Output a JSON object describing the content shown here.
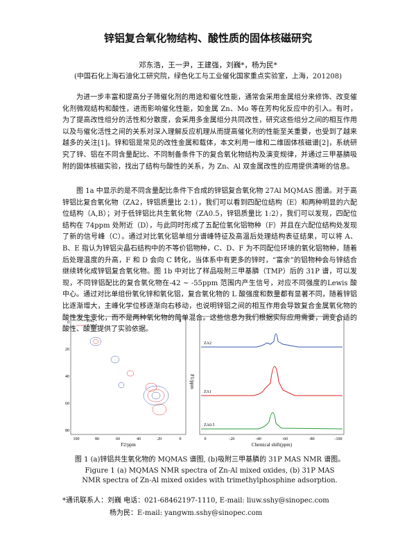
{
  "header": {
    "title": "锌铝复合氧化物结构、酸性质的固体核磁研究",
    "authors": "邓东浩，王一尹，王建强，刘巍*，杨为民*",
    "affiliation": "(中国石化上海石油化工研究院，绿色化工与工业催化国家重点实验室，上海，201208)"
  },
  "body": {
    "paragraphs": [
      "为进一步丰富和提高分子筛催化剂的用途和催化性能，通常会采用金属组分来修饰、改变催化剂微观结构和酸性，进而影响催化性能，如金属 Zn、Mo 等在芳构化反应中的引入。有时，为了提高改性组分的活性和分散度，会采用多金属组分共同改性，研究这些组分之间的相互作用以及与催化活性之间的关系对深入理解反应机理从而提高催化剂的性能至关重要，也受到了越来越多的关注[1]。锌和铝是常见的改性金属和载体，本文利用一维和二维固体核磁谱[2]，系统研究了锌、铝在不同含量配比、不同制备条件下的复合氧化物结构及演变规律，并通过三甲基膦吸附的固体核磁实验，找出了结构与酸性的关系，为 Zn、Al 双金属改性的应用提供清晰的信息。",
      "图 1a 中显示的是不同含量配比条件下合成的锌铝复合氧化物 27Al MQMAS 图谱。对于高锌铝比复合氧化物（ZA2，锌铝质量比 2:1），我们可以看到四配位结构（E）和两种明显的六配位结构（A,B）；对于低锌铝比共生氧化物（ZA0.5，锌铝质量比 1:2），我们可以发现，四配位结构在 74ppm 处附近（D），与此同时形成了五配位氧化铝物种（F）并且在六配位结构处发现了新的信号峰（C）。通过对比氧化铝单组分谱峰特征及高温后处理结构表征结果，可以将 A、B、E 指认为锌铝尖晶石结构中的不等价铝物种，C、D、F 为不同配位环境的氧化铝物种，随着后处理温度的升高，F 和 D 会向 C 转化，当体系中有更多的锌时，“富余”的铝物种会与锌结合继续转化成锌铝复合氧化物。图 1b 中对比了样品吸附三甲基膦（TMP）后的 31P 谱，可以发现，不同锌铝配比的复合氧化物在-42 ~ -55ppm 范围内产生信号，对应不同强度的Lewis 酸中心。通过对比单组份氧化锌和氧化铝，复合氧化物的 L 酸强度和数量都有显著不同，随着锌铝比逐渐增大，主峰化学位移逐渐向右移动，也说明锌铝之间的相互作用会导致复合金属氧化物的酸性发生变化，而不是两种氧化物的简单混合。这些信息为我们根据实际应用需要，调变合适的酸性、酸量提供了实验依据。"
    ]
  },
  "figure": {
    "panel_a": {
      "label": "a",
      "legend": [
        "ZA2",
        "ZA0.5"
      ],
      "x_label": "F2/ppm",
      "y_label": "F1/ppm",
      "x_ticks": [
        "100",
        "80",
        "60",
        "40",
        "20",
        "0"
      ],
      "y_ticks": [
        "0",
        "20",
        "40",
        "60",
        "80"
      ]
    },
    "panel_b": {
      "label": "b",
      "spectra": [
        "ZA2",
        "ZA1",
        "ZA0.5"
      ],
      "x_label": "Chemical shift(ppm)",
      "x_ticks": [
        "0",
        "-20",
        "-40",
        "-60",
        "-80",
        "-100"
      ]
    },
    "caption_zh": "图 1 (a)锌铝共生氧化物的 MQMAS 谱图, (b)吸附三甲基膦的 31P MAS NMR 谱图。",
    "caption_en": "Figure 1 (a) MQMAS NMR spectra of Zn-Al mixed oxides, (b) 31P MAS NMR spectra of Zn-Al mixed oxides with trimethylphosphine adsorption."
  },
  "contact": [
    "*通讯联系人：刘巍   电话：021-68462197-1110, E-mail: liuw.sshy@sinopec.com",
    "杨为民：E-mail: yangwm.sshy@sinopec.com"
  ]
}
